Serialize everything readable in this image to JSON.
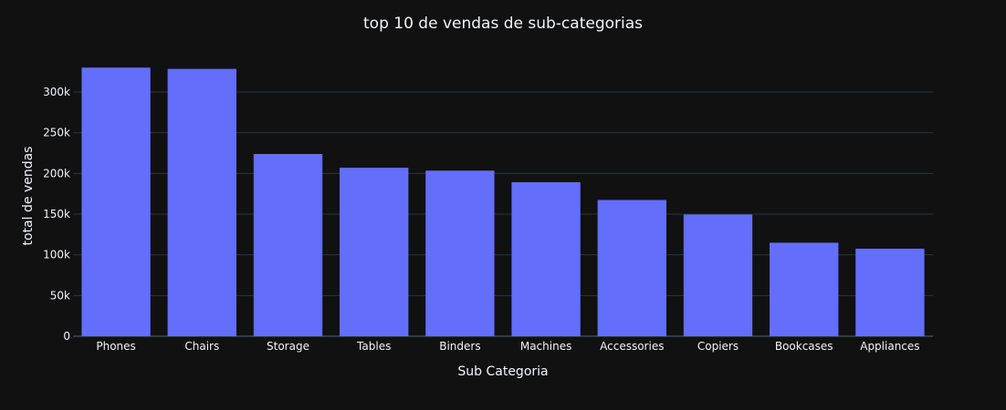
{
  "chart_data": {
    "type": "bar",
    "title": "top 10 de vendas de sub-categorias",
    "xlabel": "Sub Categoria",
    "ylabel": "total de vendas",
    "categories": [
      "Phones",
      "Chairs",
      "Storage",
      "Tables",
      "Binders",
      "Machines",
      "Accessories",
      "Copiers",
      "Bookcases",
      "Appliances"
    ],
    "values": [
      330007,
      328449,
      223844,
      206966,
      203413,
      189239,
      167380,
      149528,
      114880,
      107532
    ],
    "ylim": [
      0,
      330000
    ],
    "yticks": [
      0,
      50000,
      100000,
      150000,
      200000,
      250000,
      300000
    ],
    "ytick_labels": [
      "0",
      "50k",
      "100k",
      "150k",
      "200k",
      "250k",
      "300k"
    ],
    "grid": true,
    "bar_color": "#636efa",
    "background": "#111111"
  }
}
